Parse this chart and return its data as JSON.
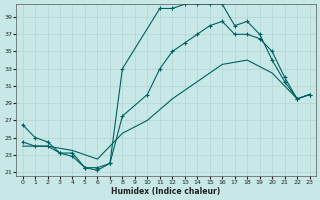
{
  "xlabel": "Humidex (Indice chaleur)",
  "bg_color": "#c8e8e8",
  "line_color": "#006060",
  "xlim": [
    -0.5,
    23.5
  ],
  "ylim": [
    20.5,
    40.5
  ],
  "yticks": [
    21,
    23,
    25,
    27,
    29,
    31,
    33,
    35,
    37,
    39
  ],
  "xticks": [
    0,
    1,
    2,
    3,
    4,
    5,
    6,
    7,
    8,
    9,
    10,
    11,
    12,
    13,
    14,
    15,
    16,
    17,
    18,
    19,
    20,
    21,
    22,
    23
  ],
  "curve1_x": [
    0,
    1,
    2,
    3,
    4,
    5,
    6,
    7,
    8,
    11,
    12,
    13,
    14,
    15,
    16,
    17,
    18,
    19,
    20,
    21,
    22,
    23
  ],
  "curve1_y": [
    26.5,
    25.0,
    24.5,
    23.2,
    23.2,
    21.5,
    21.5,
    22.0,
    33.0,
    40.0,
    40.0,
    40.5,
    40.5,
    40.5,
    40.5,
    38.0,
    38.5,
    37.0,
    34.0,
    31.5,
    29.5,
    30.0
  ],
  "curve2_x": [
    0,
    1,
    2,
    3,
    4,
    5,
    6,
    7,
    8,
    10,
    11,
    12,
    13,
    14,
    15,
    16,
    17,
    18,
    19,
    20,
    21,
    22,
    23
  ],
  "curve2_y": [
    24.5,
    24.0,
    24.0,
    23.2,
    22.8,
    21.5,
    21.2,
    22.0,
    27.5,
    30.0,
    33.0,
    35.0,
    36.0,
    37.0,
    38.0,
    38.5,
    37.0,
    37.0,
    36.5,
    35.0,
    32.0,
    29.5,
    30.0
  ],
  "curve3_x": [
    0,
    2,
    4,
    6,
    8,
    10,
    12,
    14,
    16,
    18,
    20,
    22,
    23
  ],
  "curve3_y": [
    24.0,
    24.0,
    23.5,
    22.5,
    25.5,
    27.0,
    29.5,
    31.5,
    33.5,
    34.0,
    32.5,
    29.5,
    30.0
  ]
}
